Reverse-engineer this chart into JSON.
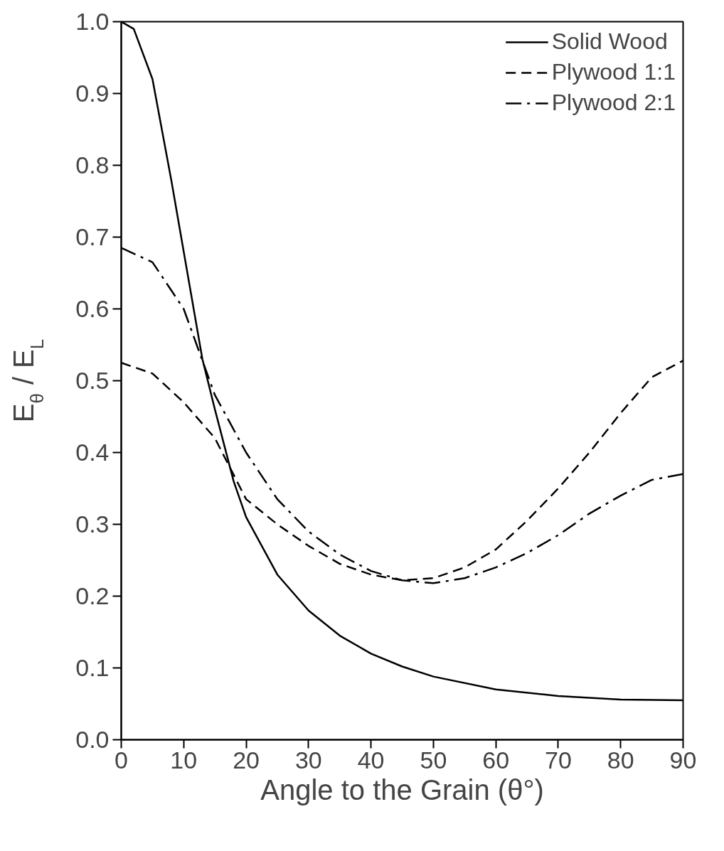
{
  "chart_data": {
    "type": "line",
    "xlabel": "Angle to the Grain (θ°)",
    "ylabel": "E$_{θ}$ / E$_{L}$",
    "xlim": [
      0,
      90
    ],
    "ylim": [
      0,
      1
    ],
    "xticks": [
      0,
      10,
      20,
      30,
      40,
      50,
      60,
      70,
      80,
      90
    ],
    "yticks": [
      {
        "value": 0,
        "label": "0.0"
      },
      {
        "value": 0.1,
        "label": "0.1"
      },
      {
        "value": 0.2,
        "label": "0.2"
      },
      {
        "value": 0.3,
        "label": "0.3"
      },
      {
        "value": 0.4,
        "label": "0.4"
      },
      {
        "value": 0.5,
        "label": "0.5"
      },
      {
        "value": 0.6,
        "label": "0.6"
      },
      {
        "value": 0.7,
        "label": "0.7"
      },
      {
        "value": 0.8,
        "label": "0.8"
      },
      {
        "value": 0.9,
        "label": "0.9"
      },
      {
        "value": 1,
        "label": "1.0"
      }
    ],
    "grid": false,
    "legend": "top right",
    "marker": "none",
    "series": [
      {
        "name": "Solid Wood",
        "color": "#000000",
        "line_style": "solid",
        "x": [
          0,
          2,
          5,
          8,
          10,
          13,
          15,
          18,
          20,
          25,
          30,
          35,
          40,
          45,
          50,
          60,
          70,
          80,
          90
        ],
        "values": [
          1.0,
          0.99,
          0.92,
          0.78,
          0.68,
          0.53,
          0.46,
          0.36,
          0.31,
          0.23,
          0.18,
          0.145,
          0.12,
          0.102,
          0.088,
          0.07,
          0.061,
          0.056,
          0.055
        ]
      },
      {
        "name": "Plywood 1:1",
        "color": "#000000",
        "line_style": "dashed",
        "x": [
          0,
          5,
          10,
          15,
          20,
          25,
          30,
          35,
          40,
          45,
          50,
          55,
          60,
          65,
          70,
          75,
          80,
          85,
          90
        ],
        "values": [
          0.525,
          0.51,
          0.47,
          0.42,
          0.335,
          0.3,
          0.27,
          0.245,
          0.23,
          0.222,
          0.225,
          0.24,
          0.265,
          0.305,
          0.35,
          0.4,
          0.455,
          0.505,
          0.528
        ]
      },
      {
        "name": "Plywood 2:1",
        "color": "#000000",
        "line_style": "dashdot",
        "x": [
          0,
          5,
          10,
          15,
          20,
          25,
          30,
          35,
          40,
          45,
          50,
          55,
          60,
          65,
          70,
          75,
          80,
          85,
          90
        ],
        "values": [
          0.685,
          0.665,
          0.6,
          0.48,
          0.4,
          0.335,
          0.29,
          0.258,
          0.235,
          0.222,
          0.218,
          0.225,
          0.24,
          0.26,
          0.285,
          0.315,
          0.34,
          0.362,
          0.37
        ]
      }
    ]
  }
}
